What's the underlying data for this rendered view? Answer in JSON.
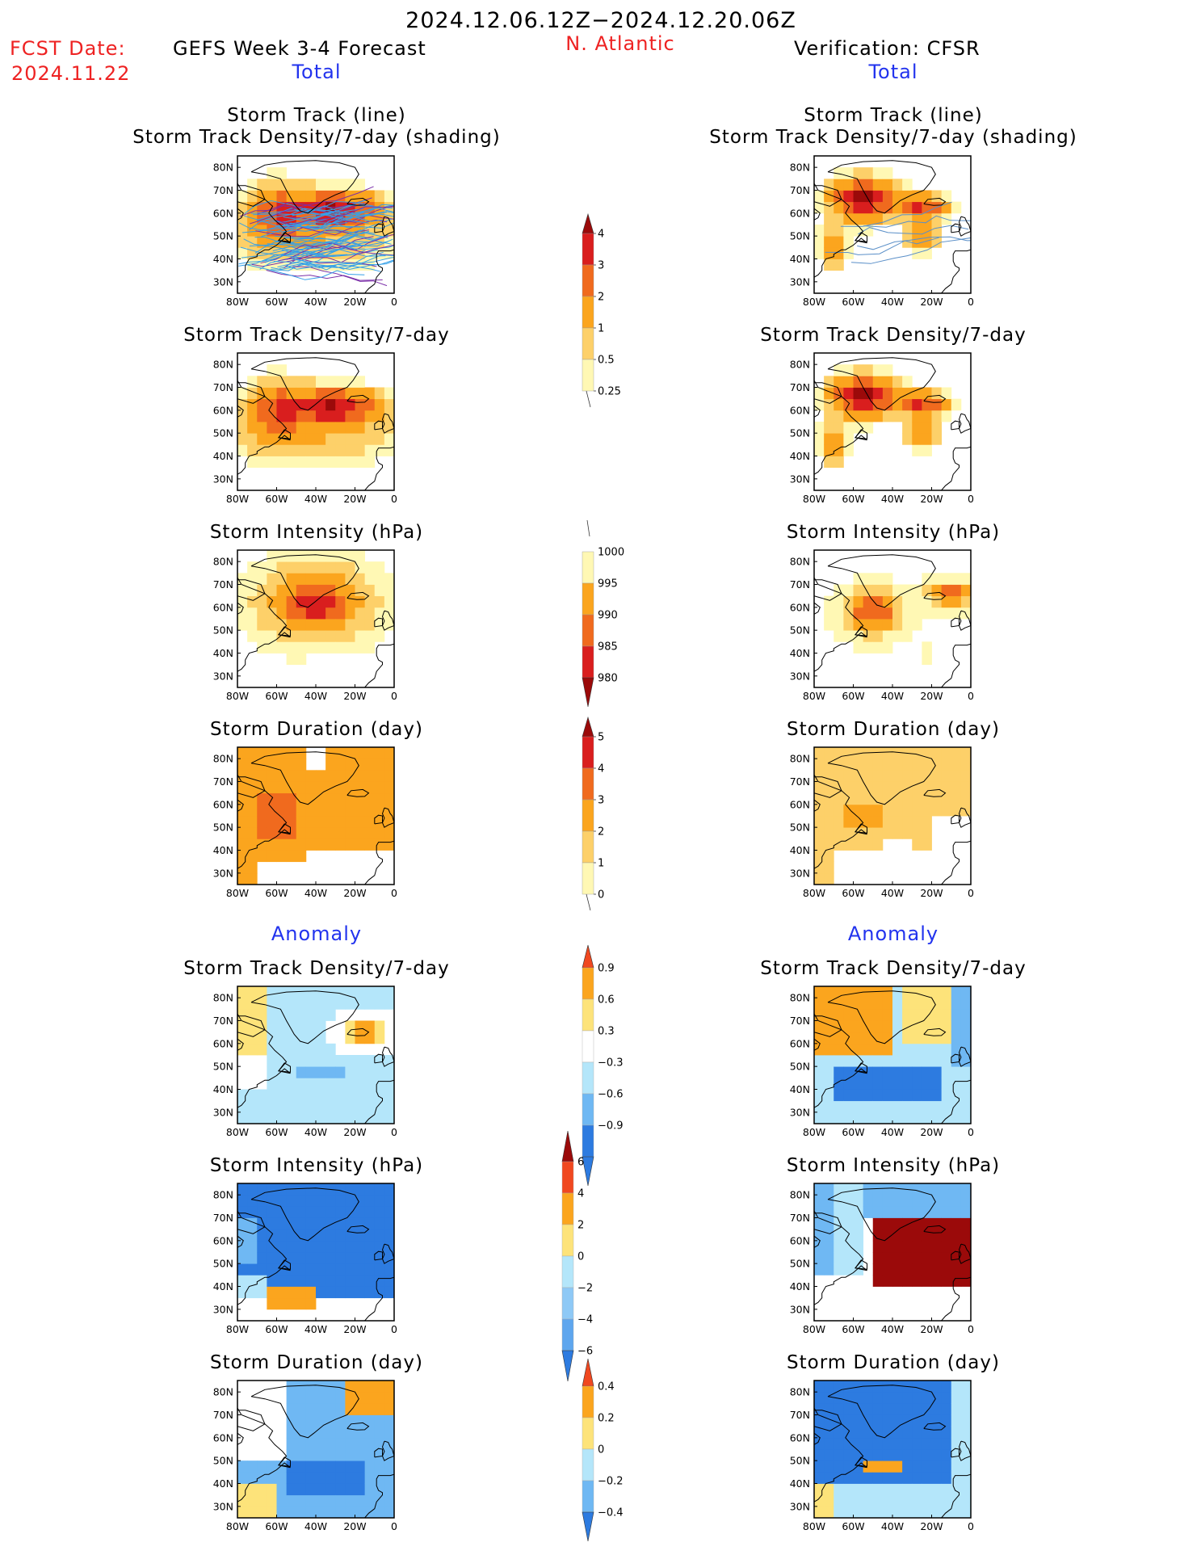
{
  "header": {
    "date_range": "2024.12.06.12Z−2024.12.20.06Z",
    "fcst_label": "FCST Date:",
    "fcst_date": "2024.11.22",
    "title": "GEFS Week 3-4 Forecast",
    "region": "N. Atlantic",
    "verification": "Verification: CFSR",
    "total_left": "Total",
    "total_right": "Total",
    "anomaly_left": "Anomaly",
    "anomaly_right": "Anomaly"
  },
  "panel_titles": {
    "track_line": "Storm Track (line)",
    "track_density_shading": "Storm Track Density/7-day (shading)",
    "track_density": "Storm Track Density/7-day",
    "intensity": "Storm Intensity (hPa)",
    "duration": "Storm Duration (day)"
  },
  "axes": {
    "lat_ticks": [
      "80N",
      "70N",
      "60N",
      "50N",
      "40N",
      "30N"
    ],
    "lon_ticks": [
      "80W",
      "60W",
      "40W",
      "20W",
      "0"
    ]
  },
  "colorbars": [
    {
      "id": "density",
      "labels": [
        "4",
        "3",
        "2",
        "1",
        "0.5",
        "0.25"
      ],
      "colors": [
        "#9b0a0a",
        "#d91e1e",
        "#f06a1e",
        "#fba51e",
        "#fdd069",
        "#fff8b4"
      ]
    },
    {
      "id": "intensity",
      "labels": [
        "1000",
        "995",
        "990",
        "985",
        "980"
      ],
      "colors": [
        "#fff8b4",
        "#fba51e",
        "#f06a1e",
        "#d91e1e",
        "#9b0a0a"
      ]
    },
    {
      "id": "duration",
      "labels": [
        "5",
        "4",
        "3",
        "2",
        "1",
        "0"
      ],
      "colors": [
        "#9b0a0a",
        "#d91e1e",
        "#f06a1e",
        "#fba51e",
        "#fdd069",
        "#fff8b4"
      ]
    },
    {
      "id": "density_anom",
      "labels": [
        "0.9",
        "0.6",
        "0.3",
        "−0.3",
        "−0.6",
        "−0.9"
      ],
      "colors": [
        "#f04820",
        "#fba51e",
        "#fde37a",
        "#ffffff",
        "#b4e6fa",
        "#6fb8f3",
        "#2d7be0"
      ]
    },
    {
      "id": "intensity_anom",
      "labels": [
        "6",
        "4",
        "2",
        "0",
        "−2",
        "−4",
        "−6"
      ],
      "colors": [
        "#9b0a0a",
        "#f04820",
        "#fba51e",
        "#fde37a",
        "#b4e6fa",
        "#8ec9f6",
        "#5ea6ee",
        "#2d7be0"
      ]
    },
    {
      "id": "duration_anom",
      "labels": [
        "0.4",
        "0.2",
        "0",
        "−0.2",
        "−0.4"
      ],
      "colors": [
        "#f04820",
        "#fba51e",
        "#fde37a",
        "#b4e6fa",
        "#6fb8f3",
        "#2d7be0"
      ]
    }
  ],
  "palette": {
    "dens": [
      "#ffffff",
      "#fff8b4",
      "#fdd069",
      "#fba51e",
      "#f06a1e",
      "#d91e1e",
      "#9b0a0a"
    ],
    "anom": [
      "#2d7be0",
      "#6fb8f3",
      "#b4e6fa",
      "#ffffff",
      "#fde37a",
      "#fba51e",
      "#f04820",
      "#9b0a0a"
    ],
    "track_line_color": "#35a0e8",
    "track_line_color2": "#7b2fa8"
  }
}
